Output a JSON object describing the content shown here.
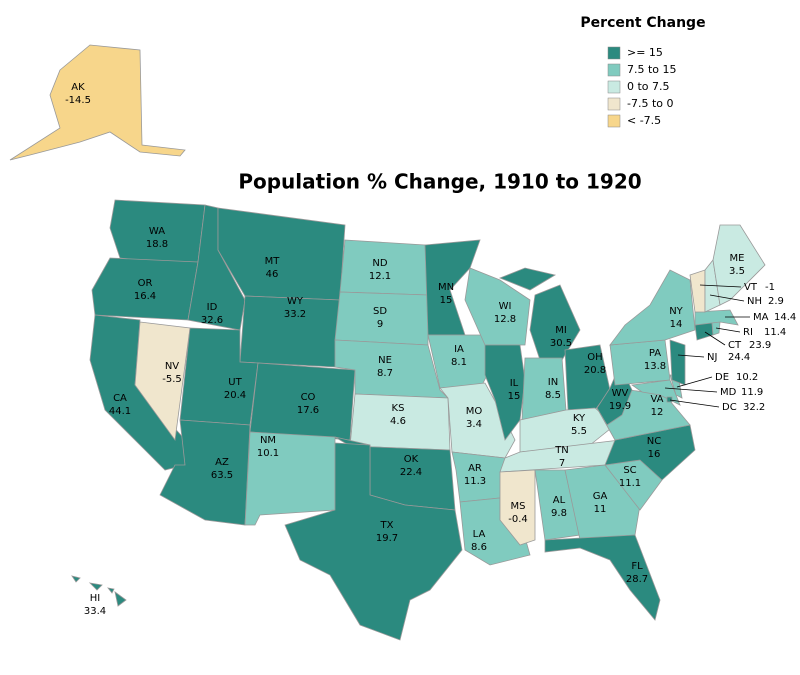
{
  "chart_data": {
    "type": "choropleth",
    "title": "Population % Change, 1910 to 1920",
    "legend": {
      "title": "Percent Change",
      "bins": [
        {
          "label": ">= 15",
          "range": [
            15,
            null
          ],
          "color": "#2b8a7f"
        },
        {
          "label": "7.5 to 15",
          "range": [
            7.5,
            15
          ],
          "color": "#80cbbf"
        },
        {
          "label": "0 to 7.5",
          "range": [
            0,
            7.5
          ],
          "color": "#c9eae2"
        },
        {
          "label": "-7.5 to 0",
          "range": [
            -7.5,
            0
          ],
          "color": "#f0e6cd"
        },
        {
          "label": "< -7.5",
          "range": [
            null,
            -7.5
          ],
          "color": "#f7d68b"
        }
      ]
    },
    "states": [
      {
        "abbr": "WA",
        "value": 18.8
      },
      {
        "abbr": "OR",
        "value": 16.4
      },
      {
        "abbr": "CA",
        "value": 44.1
      },
      {
        "abbr": "NV",
        "value": -5.5
      },
      {
        "abbr": "ID",
        "value": 32.6
      },
      {
        "abbr": "MT",
        "value": 46
      },
      {
        "abbr": "WY",
        "value": 33.2
      },
      {
        "abbr": "UT",
        "value": 20.4
      },
      {
        "abbr": "AZ",
        "value": 63.5
      },
      {
        "abbr": "CO",
        "value": 17.6
      },
      {
        "abbr": "NM",
        "value": 10.1
      },
      {
        "abbr": "ND",
        "value": 12.1
      },
      {
        "abbr": "SD",
        "value": 9
      },
      {
        "abbr": "NE",
        "value": 8.7
      },
      {
        "abbr": "KS",
        "value": 4.6
      },
      {
        "abbr": "OK",
        "value": 22.4
      },
      {
        "abbr": "TX",
        "value": 19.7
      },
      {
        "abbr": "MN",
        "value": 15
      },
      {
        "abbr": "IA",
        "value": 8.1
      },
      {
        "abbr": "MO",
        "value": 3.4
      },
      {
        "abbr": "AR",
        "value": 11.3
      },
      {
        "abbr": "LA",
        "value": 8.6
      },
      {
        "abbr": "WI",
        "value": 12.8
      },
      {
        "abbr": "IL",
        "value": 15
      },
      {
        "abbr": "MI",
        "value": 30.5
      },
      {
        "abbr": "IN",
        "value": 8.5
      },
      {
        "abbr": "OH",
        "value": 20.8
      },
      {
        "abbr": "KY",
        "value": 5.5
      },
      {
        "abbr": "TN",
        "value": 7
      },
      {
        "abbr": "MS",
        "value": -0.4
      },
      {
        "abbr": "AL",
        "value": 9.8
      },
      {
        "abbr": "GA",
        "value": 11
      },
      {
        "abbr": "FL",
        "value": 28.7
      },
      {
        "abbr": "SC",
        "value": 11.1
      },
      {
        "abbr": "NC",
        "value": 16
      },
      {
        "abbr": "VA",
        "value": 12
      },
      {
        "abbr": "WV",
        "value": 19.9
      },
      {
        "abbr": "PA",
        "value": 13.8
      },
      {
        "abbr": "NY",
        "value": 14
      },
      {
        "abbr": "MD",
        "value": 11.9
      },
      {
        "abbr": "DE",
        "value": 10.2
      },
      {
        "abbr": "NJ",
        "value": 24.4
      },
      {
        "abbr": "DC",
        "value": 32.2
      },
      {
        "abbr": "CT",
        "value": 23.9
      },
      {
        "abbr": "RI",
        "value": 11.4
      },
      {
        "abbr": "MA",
        "value": 14.4
      },
      {
        "abbr": "VT",
        "value": -1
      },
      {
        "abbr": "NH",
        "value": 2.9
      },
      {
        "abbr": "ME",
        "value": 3.5
      },
      {
        "abbr": "AK",
        "value": -14.5
      },
      {
        "abbr": "HI",
        "value": 33.4
      }
    ]
  }
}
